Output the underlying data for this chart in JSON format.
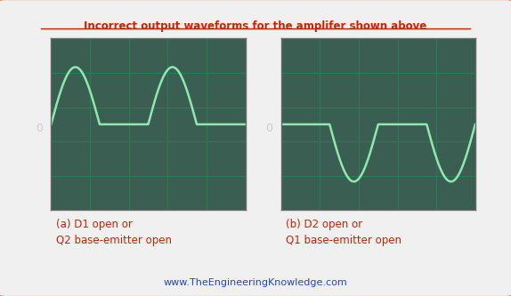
{
  "title": "Incorrect output waveforms for the amplifer shown above",
  "label_a": "(a) D1 open or\nQ2 base-emitter open",
  "label_b": "(b) D2 open or\nQ1 base-emitter open",
  "website": "www.TheEngineeringKnowledge.com",
  "bg_outer": "#f0f0f0",
  "border_color": "#f07820",
  "osc_bg": "#3a5f52",
  "grid_color": "#2a7a55",
  "wave_color": "#90e8b0",
  "zero_label_color": "#cccccc",
  "title_color": "#cc2200",
  "label_color": "#cc2200",
  "website_color": "#2244cc",
  "amplitude": 1.0
}
